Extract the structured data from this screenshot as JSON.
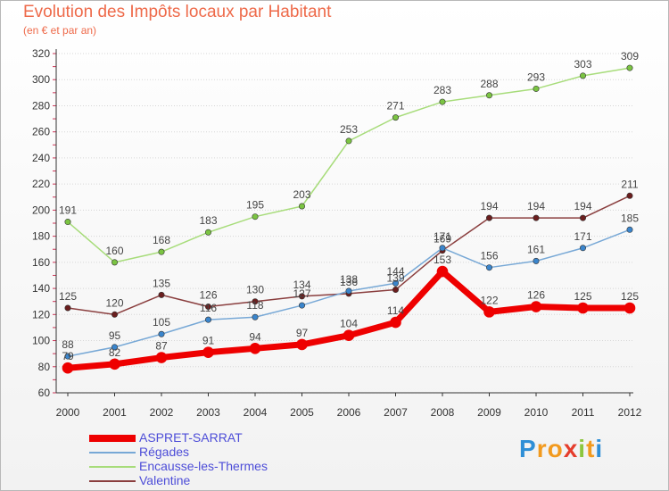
{
  "header": {
    "title": "Evolution des Impôts locaux par Habitant",
    "subtitle": "(en € et par an)"
  },
  "brand": {
    "letters": [
      {
        "ch": "P",
        "color": "#2f8fd6"
      },
      {
        "ch": "r",
        "color": "#f29a1e"
      },
      {
        "ch": "o",
        "color": "#f29a1e"
      },
      {
        "ch": "x",
        "color": "#e53d2c"
      },
      {
        "ch": "i",
        "color": "#8cc63e"
      },
      {
        "ch": "t",
        "color": "#f29a1e"
      },
      {
        "ch": "i",
        "color": "#2f8fd6"
      }
    ]
  },
  "chart_data": {
    "type": "line",
    "title": "Evolution des Impôts locaux par Habitant",
    "subtitle": "(en € et par an)",
    "xlabel": "",
    "ylabel": "",
    "x": [
      "2000",
      "2001",
      "2002",
      "2003",
      "2004",
      "2005",
      "2006",
      "2007",
      "2008",
      "2009",
      "2010",
      "2011",
      "2012"
    ],
    "ylim": [
      60,
      320
    ],
    "yticks": [
      60,
      80,
      100,
      120,
      140,
      160,
      180,
      200,
      220,
      240,
      260,
      280,
      300,
      320
    ],
    "grid": "horizontal",
    "legend_position": "bottom-left",
    "series": [
      {
        "name": "ASPRET-SARRAT",
        "color": "#ee0000",
        "width": 7,
        "marker": "#ee0000",
        "values": [
          79,
          82,
          87,
          91,
          94,
          97,
          104,
          114,
          153,
          122,
          126,
          125,
          125
        ]
      },
      {
        "name": "Régades",
        "color": "#77a8d6",
        "width": 1.5,
        "marker": "#3a85cc",
        "values": [
          88,
          95,
          105,
          116,
          118,
          127,
          138,
          144,
          171,
          156,
          161,
          171,
          185
        ]
      },
      {
        "name": "Encausse-les-Thermes",
        "color": "#a7dc7a",
        "width": 1.5,
        "marker": "#7bc442",
        "values": [
          191,
          160,
          168,
          183,
          195,
          203,
          253,
          271,
          283,
          288,
          293,
          303,
          309
        ]
      },
      {
        "name": "Valentine",
        "color": "#8a3e3e",
        "width": 1.5,
        "marker": "#6b1e1e",
        "values": [
          125,
          120,
          135,
          126,
          130,
          134,
          136,
          139,
          169,
          194,
          194,
          194,
          211
        ]
      }
    ]
  }
}
